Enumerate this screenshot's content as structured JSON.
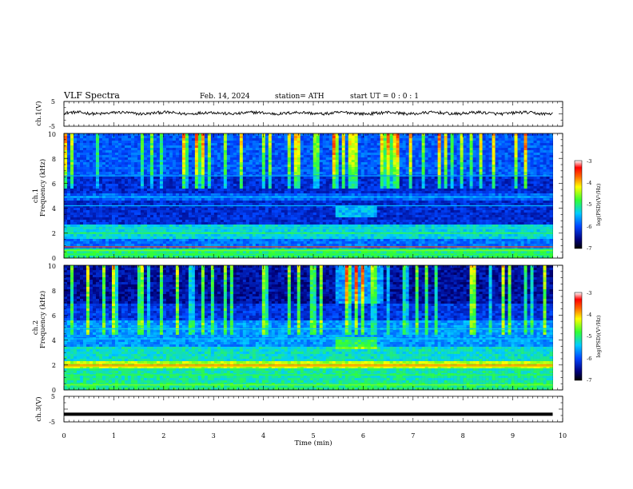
{
  "header": {
    "title": "VLF  Spectra",
    "date": "Feb. 14, 2024",
    "station": "station= ATH",
    "start_ut": "start  UT  =    0 : 0  : 1"
  },
  "chart_data": [
    {
      "type": "line",
      "name": "ch1-waveform",
      "ylabel": "ch.1(V)",
      "ylim": [
        -5,
        5
      ],
      "y_ticks": [
        "5",
        "-5"
      ],
      "x_range_min": [
        0,
        9.8
      ],
      "level_v": 0.3,
      "ripple_v": 0.6
    },
    {
      "type": "heatmap",
      "name": "ch1-spectrogram",
      "ylabel_channel": "ch.1",
      "ylabel": "Frequency  (kHz)",
      "ylim": [
        0,
        10
      ],
      "y_ticks": [
        "0",
        "2",
        "4",
        "6",
        "8",
        "10"
      ],
      "x_range_min": [
        0,
        9.8
      ],
      "colorbar": {
        "label": "log(PSD)(V²/Hz)",
        "range": [
          -7,
          -3
        ],
        "ticks": [
          "-3",
          "-4",
          "-5",
          "-6",
          "-7"
        ]
      }
    },
    {
      "type": "heatmap",
      "name": "ch2-spectrogram",
      "ylabel_channel": "ch.2",
      "ylabel": "Frequency  (kHz)",
      "ylim": [
        0,
        10
      ],
      "y_ticks": [
        "0",
        "2",
        "4",
        "6",
        "8",
        "10"
      ],
      "x_range_min": [
        0,
        9.8
      ],
      "colorbar": {
        "label": "log(PSD)(V²/Hz)",
        "range": [
          -7,
          -3
        ],
        "ticks": [
          "-3",
          "-4",
          "-5",
          "-6",
          "-7"
        ]
      }
    },
    {
      "type": "line",
      "name": "ch3-waveform",
      "ylabel": "ch.3(V)",
      "ylim": [
        -5,
        5
      ],
      "y_ticks": [
        "5",
        "-5"
      ],
      "x_range_min": [
        0,
        9.8
      ],
      "level_v": -2
    }
  ],
  "xaxis": {
    "label": "Time  (min)",
    "ticks": [
      "0",
      "1",
      "2",
      "3",
      "4",
      "5",
      "6",
      "7",
      "8",
      "9",
      "10"
    ],
    "xlim": [
      0,
      10
    ]
  }
}
